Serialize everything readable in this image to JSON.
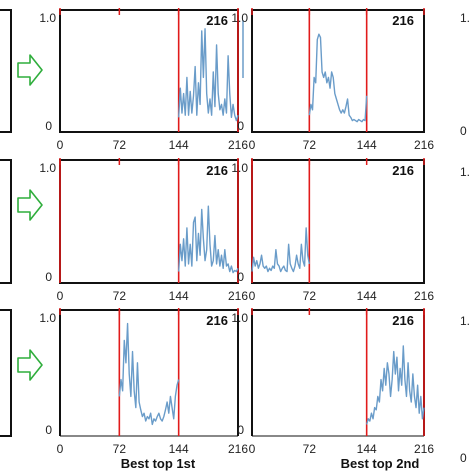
{
  "figure": {
    "column_titles": [
      "Best top 1st",
      "Best top 2nd"
    ],
    "arrow_color": "#2fae3c",
    "line_color": "#6a9cc9",
    "marker_color": "#e11b1b"
  },
  "chart_data": [
    {
      "type": "line",
      "row": 1,
      "col": 1,
      "panel_label": "216",
      "xlim": [
        0,
        216
      ],
      "ylim": [
        0,
        1
      ],
      "xticks": [
        "0",
        "72",
        "144",
        "216"
      ],
      "yticks": [
        "1.0",
        "0"
      ],
      "markers": [
        144,
        216
      ],
      "series": [
        {
          "x": [
            144,
            146,
            148,
            150,
            152,
            154,
            156,
            158,
            160,
            162,
            164,
            166,
            168,
            170,
            172,
            174,
            176,
            178,
            180,
            182,
            184,
            186,
            188,
            190,
            192,
            194,
            196,
            198,
            200,
            202,
            204,
            206,
            208,
            210,
            212,
            214,
            216
          ],
          "values": [
            0.08,
            0.35,
            0.12,
            0.3,
            0.1,
            0.45,
            0.1,
            0.32,
            0.12,
            0.28,
            0.55,
            0.1,
            0.4,
            0.2,
            0.88,
            0.45,
            0.9,
            0.3,
            0.12,
            0.25,
            0.1,
            0.5,
            0.18,
            0.75,
            0.3,
            0.15,
            0.2,
            0.1,
            0.25,
            0.12,
            0.65,
            0.3,
            0.08,
            0.2,
            0.1,
            0.05,
            0.1
          ]
        }
      ]
    },
    {
      "type": "line",
      "row": 1,
      "col": 2,
      "panel_label": "216",
      "xlim": [
        0,
        216
      ],
      "ylim": [
        0,
        1
      ],
      "xticks": [
        "0",
        "72",
        "144",
        "216"
      ],
      "yticks": [],
      "markers": [
        72,
        144
      ],
      "series": [
        {
          "x": [
            72,
            74,
            76,
            78,
            80,
            82,
            84,
            86,
            88,
            90,
            92,
            94,
            96,
            98,
            100,
            102,
            104,
            106,
            108,
            110,
            112,
            114,
            116,
            118,
            120,
            122,
            124,
            126,
            128,
            130,
            132,
            134,
            136,
            138,
            140,
            142,
            144
          ],
          "values": [
            0.1,
            0.2,
            0.15,
            0.45,
            0.4,
            0.8,
            0.85,
            0.82,
            0.5,
            0.45,
            0.5,
            0.4,
            0.45,
            0.35,
            0.5,
            0.45,
            0.3,
            0.25,
            0.2,
            0.15,
            0.12,
            0.15,
            0.12,
            0.18,
            0.25,
            0.1,
            0.08,
            0.05,
            0.06,
            0.05,
            0.04,
            0.06,
            0.05,
            0.04,
            0.06,
            0.05,
            0.28
          ]
        }
      ]
    },
    {
      "type": "line",
      "row": 2,
      "col": 1,
      "panel_label": "216",
      "xlim": [
        0,
        216
      ],
      "ylim": [
        0,
        1
      ],
      "xticks": [
        "0",
        "72",
        "144",
        "216"
      ],
      "yticks": [
        "1.0",
        "0"
      ],
      "markers": [
        0,
        144,
        216
      ],
      "series": [
        {
          "x": [
            144,
            146,
            148,
            150,
            152,
            154,
            156,
            158,
            160,
            162,
            164,
            166,
            168,
            170,
            172,
            174,
            176,
            178,
            180,
            182,
            184,
            186,
            188,
            190,
            192,
            194,
            196,
            198,
            200,
            202,
            204,
            206,
            208,
            210,
            212,
            214,
            216
          ],
          "values": [
            0.05,
            0.3,
            0.15,
            0.35,
            0.1,
            0.45,
            0.12,
            0.3,
            0.1,
            0.5,
            0.55,
            0.15,
            0.4,
            0.2,
            0.62,
            0.35,
            0.15,
            0.25,
            0.65,
            0.3,
            0.1,
            0.15,
            0.38,
            0.12,
            0.25,
            0.1,
            0.2,
            0.08,
            0.25,
            0.1,
            0.12,
            0.05,
            0.1,
            0.04,
            0.06,
            0.05,
            0.08
          ]
        }
      ]
    },
    {
      "type": "line",
      "row": 2,
      "col": 2,
      "panel_label": "216",
      "xlim": [
        0,
        216
      ],
      "ylim": [
        0,
        1
      ],
      "xticks": [
        "0",
        "72",
        "144",
        "216"
      ],
      "yticks": [],
      "markers": [
        0,
        72
      ],
      "series": [
        {
          "x": [
            0,
            2,
            4,
            6,
            8,
            10,
            12,
            14,
            16,
            18,
            20,
            22,
            24,
            26,
            28,
            30,
            32,
            34,
            36,
            38,
            40,
            42,
            44,
            46,
            48,
            50,
            52,
            54,
            56,
            58,
            60,
            62,
            64,
            66,
            68,
            70,
            72
          ],
          "values": [
            0.05,
            0.18,
            0.1,
            0.15,
            0.08,
            0.12,
            0.2,
            0.1,
            0.08,
            0.1,
            0.05,
            0.08,
            0.06,
            0.1,
            0.08,
            0.25,
            0.12,
            0.1,
            0.05,
            0.08,
            0.1,
            0.06,
            0.05,
            0.3,
            0.12,
            0.08,
            0.05,
            0.1,
            0.2,
            0.12,
            0.08,
            0.3,
            0.15,
            0.1,
            0.45,
            0.2,
            0.12
          ]
        }
      ]
    },
    {
      "type": "line",
      "row": 3,
      "col": 1,
      "panel_label": "216",
      "xlim": [
        0,
        216
      ],
      "ylim": [
        0,
        1
      ],
      "xticks": [
        "0",
        "72",
        "144",
        "216"
      ],
      "yticks": [
        "1.0",
        "0"
      ],
      "markers": [
        72,
        144
      ],
      "series": [
        {
          "x": [
            72,
            74,
            76,
            78,
            80,
            82,
            84,
            86,
            88,
            90,
            92,
            94,
            96,
            98,
            100,
            102,
            104,
            106,
            108,
            110,
            112,
            114,
            116,
            118,
            120,
            122,
            124,
            126,
            128,
            130,
            132,
            134,
            136,
            138,
            140,
            142,
            144
          ],
          "values": [
            0.3,
            0.45,
            0.35,
            0.8,
            0.6,
            0.95,
            0.5,
            0.3,
            0.7,
            0.35,
            0.2,
            0.6,
            0.25,
            0.18,
            0.12,
            0.15,
            0.08,
            0.12,
            0.1,
            0.15,
            0.05,
            0.1,
            0.08,
            0.12,
            0.15,
            0.1,
            0.08,
            0.12,
            0.18,
            0.25,
            0.15,
            0.3,
            0.2,
            0.1,
            0.3,
            0.4,
            0.45
          ]
        }
      ]
    },
    {
      "type": "line",
      "row": 3,
      "col": 2,
      "panel_label": "216",
      "xlim": [
        0,
        216
      ],
      "ylim": [
        0,
        1
      ],
      "xticks": [
        "0",
        "72",
        "144",
        "216"
      ],
      "yticks": [],
      "markers": [
        144,
        216
      ],
      "series": [
        {
          "x": [
            144,
            146,
            148,
            150,
            152,
            154,
            156,
            158,
            160,
            162,
            164,
            166,
            168,
            170,
            172,
            174,
            176,
            178,
            180,
            182,
            184,
            186,
            188,
            190,
            192,
            194,
            196,
            198,
            200,
            202,
            204,
            206,
            208,
            210,
            212,
            214,
            216
          ],
          "values": [
            0.05,
            0.1,
            0.08,
            0.15,
            0.1,
            0.2,
            0.18,
            0.3,
            0.25,
            0.45,
            0.35,
            0.55,
            0.4,
            0.6,
            0.5,
            0.3,
            0.45,
            0.7,
            0.5,
            0.65,
            0.35,
            0.55,
            0.4,
            0.75,
            0.45,
            0.3,
            0.6,
            0.35,
            0.25,
            0.5,
            0.3,
            0.2,
            0.4,
            0.15,
            0.3,
            0.1,
            0.2
          ]
        }
      ]
    }
  ]
}
